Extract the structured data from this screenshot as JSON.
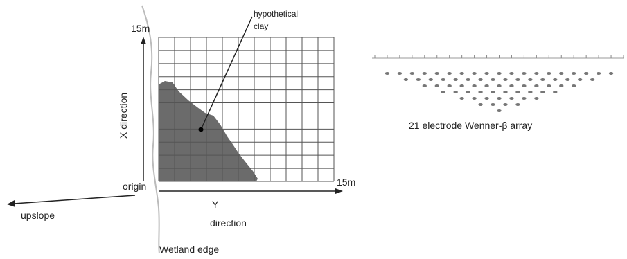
{
  "labels": {
    "x_max": "15m",
    "y_max": "15m",
    "x_axis": "X direction",
    "y_axis_line1": "Y",
    "y_axis_line2": "direction",
    "origin": "origin",
    "upslope": "upslope",
    "wetland": "Wetland edge",
    "clay_line1": "hypothetical",
    "clay_line2": "clay",
    "array": "21 electrode Wenner-β array"
  },
  "grid": {
    "rows": 11,
    "cols": 11
  },
  "array_data": {
    "electrodes": 21,
    "rows": [
      19,
      16,
      13,
      10,
      7,
      4,
      1
    ]
  },
  "colors": {
    "clay": "#6b6b6b",
    "grid": "#555555",
    "line": "#222222",
    "dots": "#777777"
  }
}
